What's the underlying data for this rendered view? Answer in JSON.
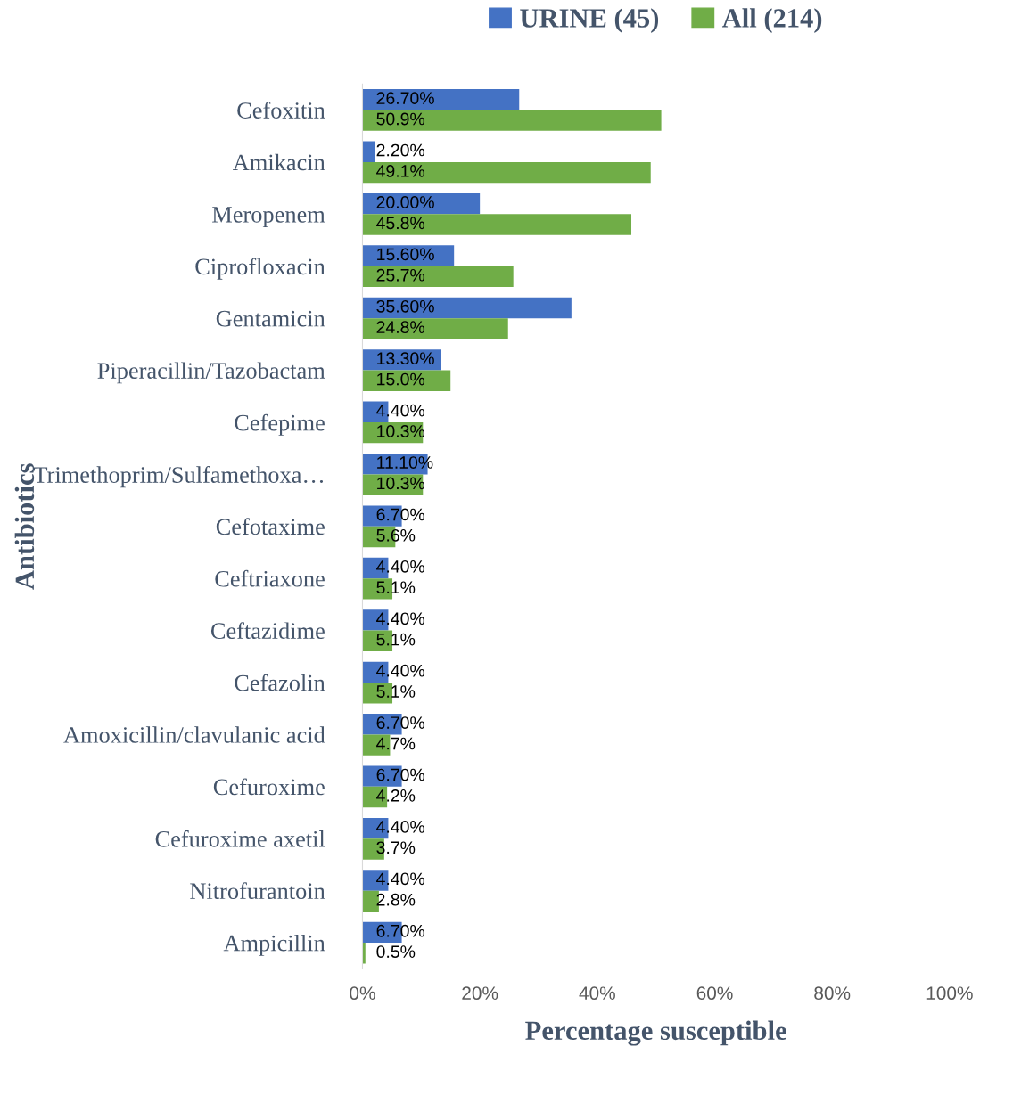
{
  "chart_data": {
    "type": "bar",
    "orientation": "horizontal",
    "xlabel": "Percentage susceptible",
    "ylabel": "Antibiotics",
    "categories": [
      "Cefoxitin",
      "Amikacin",
      "Meropenem",
      "Ciprofloxacin",
      "Gentamicin",
      "Piperacillin/Tazobactam",
      "Cefepime",
      "Trimethoprim/Sulfamethoxa…",
      "Cefotaxime",
      "Ceftriaxone",
      "Ceftazidime",
      "Cefazolin",
      "Amoxicillin/clavulanic acid",
      "Cefuroxime",
      "Cefuroxime axetil",
      "Nitrofurantoin",
      "Ampicillin"
    ],
    "series": [
      {
        "name": "URINE (45)",
        "color": "#4472c4",
        "values": [
          26.7,
          2.2,
          20.0,
          15.6,
          35.6,
          13.3,
          4.4,
          11.1,
          6.7,
          4.4,
          4.4,
          4.4,
          6.7,
          6.7,
          4.4,
          4.4,
          6.7
        ],
        "value_labels": [
          "26.70%",
          "2.20%",
          "20.00%",
          "15.60%",
          "35.60%",
          "13.30%",
          "4.40%",
          "11.10%",
          "6.70%",
          "4.40%",
          "4.40%",
          "4.40%",
          "6.70%",
          "6.70%",
          "4.40%",
          "4.40%",
          "6.70%"
        ]
      },
      {
        "name": "All (214)",
        "color": "#70ad47",
        "values": [
          50.9,
          49.1,
          45.8,
          25.7,
          24.8,
          15.0,
          10.3,
          10.3,
          5.6,
          5.1,
          5.1,
          5.1,
          4.7,
          4.2,
          3.7,
          2.8,
          0.5
        ],
        "value_labels": [
          "50.9%",
          "49.1%",
          "45.8%",
          "25.7%",
          "24.8%",
          "15.0%",
          "10.3%",
          "10.3%",
          "5.6%",
          "5.1%",
          "5.1%",
          "5.1%",
          "4.7%",
          "4.2%",
          "3.7%",
          "2.8%",
          "0.5%"
        ]
      }
    ],
    "xlim": [
      0,
      100
    ],
    "xticks": [
      {
        "value": 0,
        "label": "0%"
      },
      {
        "value": 20,
        "label": "20%"
      },
      {
        "value": 40,
        "label": "40%"
      },
      {
        "value": 60,
        "label": "60%"
      },
      {
        "value": 80,
        "label": "80%"
      },
      {
        "value": 100,
        "label": "100%"
      }
    ],
    "grid": false,
    "legend": "top"
  }
}
